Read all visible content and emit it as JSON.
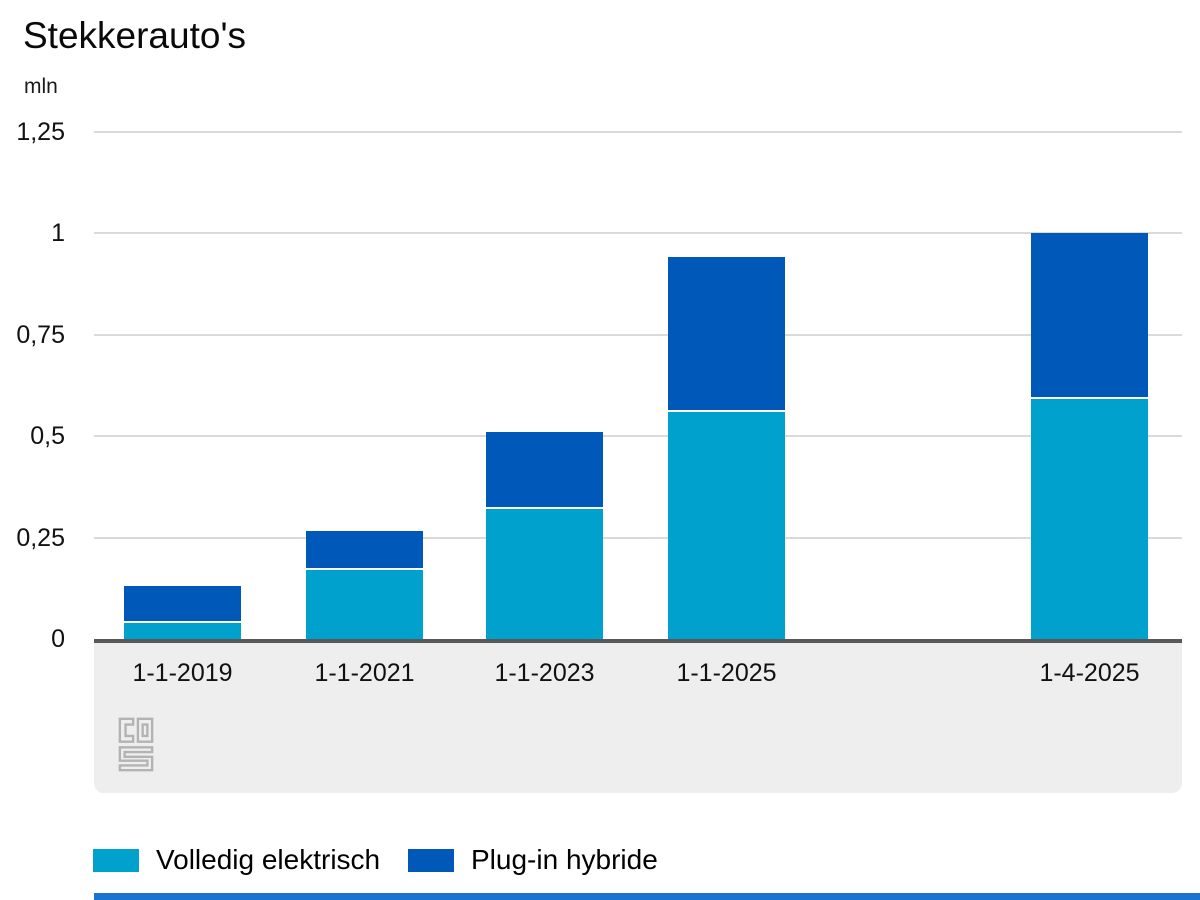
{
  "title": "Stekkerauto's",
  "unit_label": "mln",
  "legend": [
    {
      "label": "Volledig elektrisch",
      "color": "#00a1cd"
    },
    {
      "label": "Plug-in hybride",
      "color": "#0058b8"
    }
  ],
  "icons": {
    "source_logo": "cbs-logo"
  },
  "colors": {
    "electric": "#00a1cd",
    "hybrid": "#0058b8",
    "gridline": "#dadada",
    "axis_line": "#58585b",
    "xband_background": "#eeeeee",
    "logo_gray": "#b3b3b3",
    "footer_bar": "#1874d0",
    "text": "#000000"
  },
  "chart_data": {
    "type": "bar",
    "stacked": true,
    "title": "Stekkerauto's",
    "ylabel": "mln",
    "xlabel": "",
    "categories": [
      "1-1-2019",
      "1-1-2021",
      "1-1-2023",
      "1-1-2025",
      "1-4-2025"
    ],
    "series": [
      {
        "name": "Volledig elektrisch",
        "color": "#00a1cd",
        "values": [
          0.04,
          0.17,
          0.32,
          0.56,
          0.59
        ]
      },
      {
        "name": "Plug-in hybride",
        "color": "#0058b8",
        "values": [
          0.09,
          0.095,
          0.19,
          0.38,
          0.41
        ]
      }
    ],
    "stack_totals": [
      0.13,
      0.265,
      0.51,
      0.94,
      1.0
    ],
    "y_ticks": [
      "0",
      "0,25",
      "0,5",
      "0,75",
      "1",
      "1,25"
    ],
    "y_tick_values": [
      0,
      0.25,
      0.5,
      0.75,
      1,
      1.25
    ],
    "ylim": [
      0,
      1.25
    ],
    "grid": true,
    "legend_position": "bottom"
  }
}
